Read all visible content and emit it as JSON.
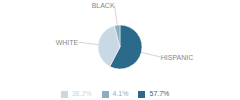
{
  "chart_data": {
    "type": "pie",
    "categories": [
      "HISPANIC",
      "WHITE",
      "BLACK"
    ],
    "values": [
      57.7,
      38.2,
      4.1
    ],
    "value_labels": [
      "57.7%",
      "38.2%",
      "4.1%"
    ],
    "colors": [
      "#2B6A8A",
      "#C8D8E4",
      "#8AAFC2"
    ],
    "legend": "bottom"
  }
}
